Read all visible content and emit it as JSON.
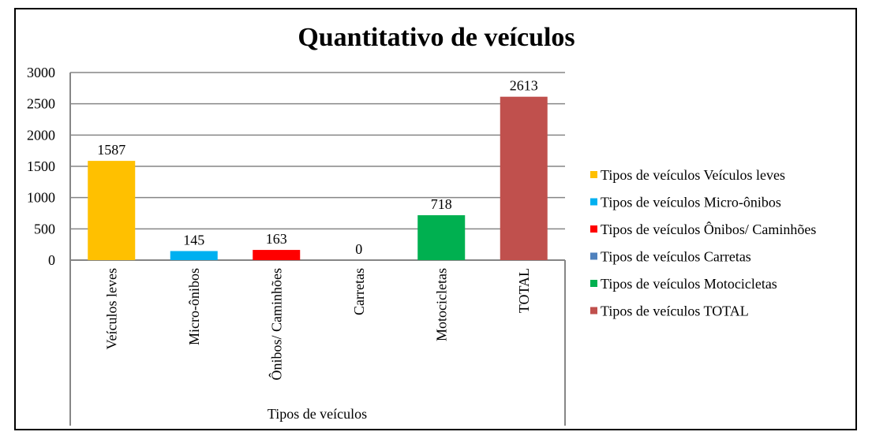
{
  "chart_data": {
    "type": "bar",
    "title": "Quantitativo de veículos",
    "xlabel": "Tipos de veículos",
    "ylabel": "",
    "ylim": [
      0,
      3000
    ],
    "yticks": [
      0,
      500,
      1000,
      1500,
      2000,
      2500,
      3000
    ],
    "grid": true,
    "legend_position": "right",
    "categories": [
      "Veículos leves",
      "Micro-ônibos",
      "Ônibos/ Caminhões",
      "Carretas",
      "Motocicletas",
      "TOTAL"
    ],
    "values": [
      1587,
      145,
      163,
      0,
      718,
      2613
    ],
    "colors": [
      "#FFC000",
      "#00B0F0",
      "#FF0000",
      "#4F81BD",
      "#00B050",
      "#C0504D"
    ],
    "legend": [
      "Tipos de veículos Veículos leves",
      "Tipos de veículos Micro-ônibos",
      "Tipos de veículos Ônibos/ Caminhões",
      "Tipos de veículos Carretas",
      "Tipos de veículos Motocicletas",
      "Tipos de veículos  TOTAL"
    ]
  }
}
